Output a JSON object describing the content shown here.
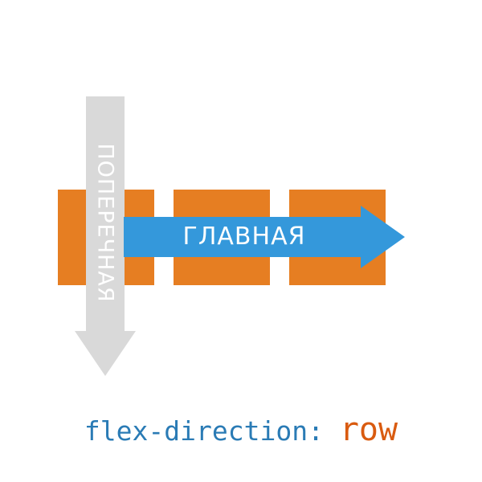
{
  "colors": {
    "item": "#e67e22",
    "main_axis": "#3498db",
    "cross_axis": "#d9d9d9",
    "property_text": "#2a7bb5",
    "value_text": "#d95b10"
  },
  "items": [
    {
      "id": "item-1"
    },
    {
      "id": "item-2"
    },
    {
      "id": "item-3"
    }
  ],
  "axes": {
    "main": {
      "label": "ГЛАВНАЯ"
    },
    "cross": {
      "label": "ПОПЕРЕЧНАЯ"
    }
  },
  "caption": {
    "property": "flex-direction: ",
    "value": "row"
  }
}
